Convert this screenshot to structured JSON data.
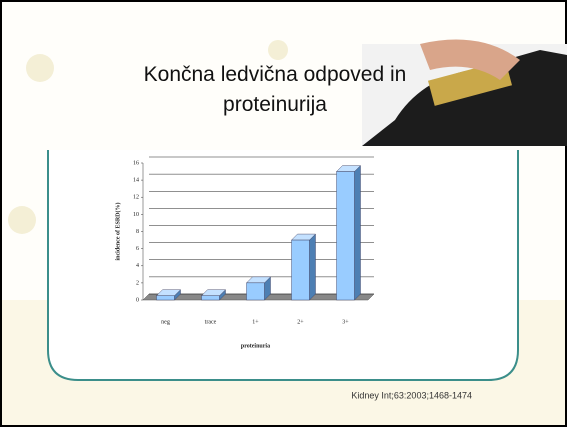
{
  "slide": {
    "title": "Končna ledvična odpoved in proteinurija",
    "citation": "Kidney Int;63:2003;1468-1474"
  },
  "chart_data": {
    "type": "bar",
    "categories": [
      "neg",
      "trace",
      "1+",
      "2+",
      "3+"
    ],
    "values": [
      0.5,
      0.5,
      2,
      7,
      15
    ],
    "color": "#99ccff",
    "y_label": "incidence of ESRD(%)",
    "x_label": "proteinuria",
    "ylim": [
      0,
      16
    ],
    "yticks": [
      0,
      2,
      4,
      6,
      8,
      10,
      12,
      14,
      16
    ],
    "grid": true
  }
}
